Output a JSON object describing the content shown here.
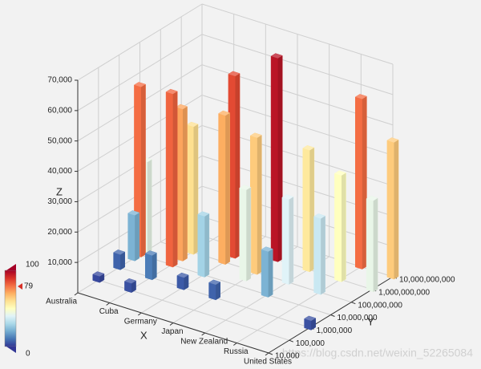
{
  "chart_data": {
    "type": "bar3d",
    "x_label": "X",
    "y_label": "Y",
    "z_label": "Z",
    "categories": [
      "Australia",
      "Cuba",
      "Germany",
      "Japan",
      "New Zealand",
      "Russia",
      "United States"
    ],
    "ylim": [
      10000,
      10000000000
    ],
    "log_y": true,
    "yticks": [
      {
        "value": 10000,
        "label": "10,000"
      },
      {
        "value": 100000,
        "label": "100,000"
      },
      {
        "value": 1000000,
        "label": "1,000,000"
      },
      {
        "value": 10000000,
        "label": "10,000,000"
      },
      {
        "value": 100000000,
        "label": "100,000,000"
      },
      {
        "value": 1000000000,
        "label": "1,000,000,000"
      },
      {
        "value": 10000000000,
        "label": "10,000,000,000"
      }
    ],
    "zlim": [
      0,
      70000
    ],
    "zticks": [
      {
        "value": 10000,
        "label": "10,000"
      },
      {
        "value": 20000,
        "label": "20,000"
      },
      {
        "value": 30000,
        "label": "30,000"
      },
      {
        "value": 40000,
        "label": "40,000"
      },
      {
        "value": 50000,
        "label": "50,000"
      },
      {
        "value": 60000,
        "label": "60,000"
      },
      {
        "value": 70000,
        "label": "70,000"
      }
    ],
    "grid": true,
    "colormap": [
      "#313695",
      "#4575b4",
      "#74add1",
      "#abd9e9",
      "#e0f3f8",
      "#ffffbf",
      "#fee090",
      "#fdae61",
      "#f46d43",
      "#d73027",
      "#a50026"
    ],
    "bars": {
      "x": [
        "Australia",
        "Australia",
        "Australia",
        "Australia",
        "Australia",
        "Cuba",
        "Cuba",
        "Cuba",
        "Cuba",
        "Cuba",
        "Germany",
        "Germany",
        "Germany",
        "Germany",
        "Japan",
        "Japan",
        "Japan",
        "Japan",
        "New Zealand",
        "New Zealand",
        "New Zealand",
        "Russia",
        "Russia",
        "Russia",
        "United States",
        "United States",
        "United States"
      ],
      "y": [
        10000000,
        20000000,
        5000000,
        1000000,
        100000,
        10000000,
        30000000,
        100000000,
        1000000,
        100000,
        100000000,
        300000000,
        10000000,
        1000000,
        100000000,
        1000000000,
        30000000,
        1000000,
        100000000,
        1000000000,
        10000000,
        100000000,
        1000000000,
        10000000000,
        1000000000,
        10000000000,
        1000000
      ],
      "z": [
        56000,
        30000,
        15000,
        5000,
        2000,
        57000,
        50000,
        42000,
        8000,
        3000,
        49000,
        60000,
        20000,
        4000,
        45000,
        67000,
        30000,
        5000,
        28000,
        40000,
        15000,
        25000,
        35000,
        56000,
        30000,
        45000,
        3000
      ]
    },
    "colorbar": {
      "min": 0,
      "max": 100,
      "marker": 79,
      "min_label": "0",
      "max_label": "100",
      "marker_label": "79"
    },
    "watermark": "https://blog.csdn.net/weixin_52265084"
  }
}
